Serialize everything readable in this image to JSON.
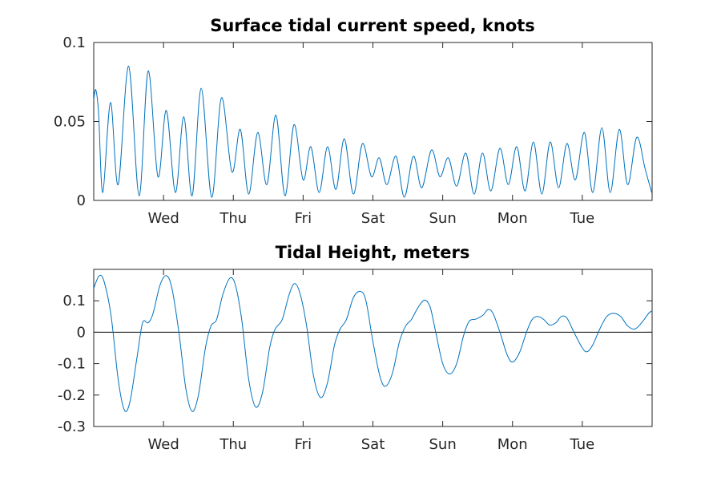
{
  "chart_data": [
    {
      "type": "line",
      "title": "Surface tidal current speed, knots",
      "xlabel": "",
      "ylabel": "",
      "x_unit": "days",
      "xlim": [
        0,
        8
      ],
      "ylim": [
        0,
        0.1
      ],
      "y_ticks": [
        0,
        0.05,
        0.1
      ],
      "y_tick_labels": [
        "0",
        "0.05",
        "0.1"
      ],
      "x_ticks": [
        1,
        2,
        3,
        4,
        5,
        6,
        7
      ],
      "x_tick_labels": [
        "Wed",
        "Thu",
        "Fri",
        "Sat",
        "Sun",
        "Mon",
        "Tue"
      ],
      "grid": false,
      "color": "#0072bd",
      "zero_line": false,
      "series": [
        {
          "points": [
            [
              0.0,
              0.064
            ],
            [
              0.03,
              0.07
            ],
            [
              0.07,
              0.055
            ],
            [
              0.13,
              0.005
            ],
            [
              0.24,
              0.062
            ],
            [
              0.35,
              0.01
            ],
            [
              0.5,
              0.085
            ],
            [
              0.65,
              0.003
            ],
            [
              0.78,
              0.082
            ],
            [
              0.92,
              0.015
            ],
            [
              1.04,
              0.057
            ],
            [
              1.17,
              0.005
            ],
            [
              1.29,
              0.053
            ],
            [
              1.41,
              0.003
            ],
            [
              1.54,
              0.071
            ],
            [
              1.69,
              0.002
            ],
            [
              1.83,
              0.065
            ],
            [
              1.98,
              0.018
            ],
            [
              2.1,
              0.045
            ],
            [
              2.22,
              0.004
            ],
            [
              2.35,
              0.043
            ],
            [
              2.48,
              0.01
            ],
            [
              2.61,
              0.054
            ],
            [
              2.74,
              0.003
            ],
            [
              2.87,
              0.048
            ],
            [
              3.0,
              0.013
            ],
            [
              3.11,
              0.034
            ],
            [
              3.23,
              0.005
            ],
            [
              3.35,
              0.034
            ],
            [
              3.47,
              0.007
            ],
            [
              3.59,
              0.039
            ],
            [
              3.72,
              0.004
            ],
            [
              3.85,
              0.036
            ],
            [
              3.98,
              0.015
            ],
            [
              4.09,
              0.027
            ],
            [
              4.2,
              0.01
            ],
            [
              4.33,
              0.028
            ],
            [
              4.45,
              0.002
            ],
            [
              4.58,
              0.028
            ],
            [
              4.7,
              0.008
            ],
            [
              4.84,
              0.032
            ],
            [
              4.96,
              0.015
            ],
            [
              5.08,
              0.027
            ],
            [
              5.2,
              0.009
            ],
            [
              5.33,
              0.03
            ],
            [
              5.45,
              0.004
            ],
            [
              5.57,
              0.03
            ],
            [
              5.69,
              0.006
            ],
            [
              5.82,
              0.033
            ],
            [
              5.94,
              0.01
            ],
            [
              6.06,
              0.034
            ],
            [
              6.18,
              0.006
            ],
            [
              6.3,
              0.037
            ],
            [
              6.42,
              0.004
            ],
            [
              6.54,
              0.037
            ],
            [
              6.66,
              0.008
            ],
            [
              6.78,
              0.036
            ],
            [
              6.9,
              0.013
            ],
            [
              7.03,
              0.043
            ],
            [
              7.15,
              0.005
            ],
            [
              7.28,
              0.046
            ],
            [
              7.4,
              0.005
            ],
            [
              7.53,
              0.045
            ],
            [
              7.65,
              0.01
            ],
            [
              7.78,
              0.04
            ],
            [
              7.9,
              0.02
            ],
            [
              8.0,
              0.004
            ]
          ]
        }
      ]
    },
    {
      "type": "line",
      "title": "Tidal Height, meters",
      "xlabel": "",
      "ylabel": "",
      "x_unit": "days",
      "xlim": [
        0,
        8
      ],
      "ylim": [
        -0.3,
        0.2
      ],
      "y_ticks": [
        -0.3,
        -0.2,
        -0.1,
        0,
        0.1
      ],
      "y_tick_labels": [
        "-0.3",
        "-0.2",
        "-0.1",
        "0",
        "0.1"
      ],
      "x_ticks": [
        1,
        2,
        3,
        4,
        5,
        6,
        7
      ],
      "x_tick_labels": [
        "Wed",
        "Thu",
        "Fri",
        "Sat",
        "Sun",
        "Mon",
        "Tue"
      ],
      "grid": false,
      "color": "#0072bd",
      "zero_line": true,
      "series": [
        {
          "points": [
            [
              0.0,
              0.14
            ],
            [
              0.08,
              0.18
            ],
            [
              0.15,
              0.16
            ],
            [
              0.25,
              0.05
            ],
            [
              0.35,
              -0.15
            ],
            [
              0.44,
              -0.248
            ],
            [
              0.52,
              -0.22
            ],
            [
              0.62,
              -0.08
            ],
            [
              0.7,
              0.03
            ],
            [
              0.78,
              0.03
            ],
            [
              0.85,
              0.06
            ],
            [
              0.95,
              0.15
            ],
            [
              1.04,
              0.18
            ],
            [
              1.12,
              0.14
            ],
            [
              1.22,
              0.0
            ],
            [
              1.32,
              -0.18
            ],
            [
              1.41,
              -0.252
            ],
            [
              1.5,
              -0.2
            ],
            [
              1.6,
              -0.05
            ],
            [
              1.68,
              0.02
            ],
            [
              1.76,
              0.04
            ],
            [
              1.85,
              0.12
            ],
            [
              1.95,
              0.172
            ],
            [
              2.03,
              0.15
            ],
            [
              2.12,
              0.04
            ],
            [
              2.22,
              -0.15
            ],
            [
              2.32,
              -0.238
            ],
            [
              2.42,
              -0.19
            ],
            [
              2.52,
              -0.05
            ],
            [
              2.6,
              0.01
            ],
            [
              2.7,
              0.04
            ],
            [
              2.8,
              0.12
            ],
            [
              2.88,
              0.155
            ],
            [
              2.96,
              0.12
            ],
            [
              3.05,
              0.02
            ],
            [
              3.15,
              -0.14
            ],
            [
              3.25,
              -0.208
            ],
            [
              3.35,
              -0.16
            ],
            [
              3.45,
              -0.04
            ],
            [
              3.53,
              0.01
            ],
            [
              3.62,
              0.04
            ],
            [
              3.72,
              0.11
            ],
            [
              3.82,
              0.13
            ],
            [
              3.9,
              0.1
            ],
            [
              4.0,
              -0.03
            ],
            [
              4.1,
              -0.14
            ],
            [
              4.18,
              -0.172
            ],
            [
              4.28,
              -0.13
            ],
            [
              4.38,
              -0.03
            ],
            [
              4.47,
              0.02
            ],
            [
              4.55,
              0.04
            ],
            [
              4.65,
              0.08
            ],
            [
              4.74,
              0.102
            ],
            [
              4.82,
              0.08
            ],
            [
              4.9,
              0.0
            ],
            [
              5.0,
              -0.1
            ],
            [
              5.1,
              -0.133
            ],
            [
              5.2,
              -0.1
            ],
            [
              5.3,
              -0.01
            ],
            [
              5.38,
              0.035
            ],
            [
              5.48,
              0.042
            ],
            [
              5.58,
              0.055
            ],
            [
              5.65,
              0.072
            ],
            [
              5.72,
              0.06
            ],
            [
              5.82,
              0.0
            ],
            [
              5.92,
              -0.07
            ],
            [
              6.0,
              -0.095
            ],
            [
              6.1,
              -0.065
            ],
            [
              6.2,
              0.0
            ],
            [
              6.28,
              0.04
            ],
            [
              6.36,
              0.05
            ],
            [
              6.45,
              0.04
            ],
            [
              6.53,
              0.023
            ],
            [
              6.62,
              0.03
            ],
            [
              6.7,
              0.05
            ],
            [
              6.78,
              0.045
            ],
            [
              6.88,
              0.0
            ],
            [
              7.0,
              -0.05
            ],
            [
              7.07,
              -0.062
            ],
            [
              7.15,
              -0.04
            ],
            [
              7.25,
              0.01
            ],
            [
              7.35,
              0.05
            ],
            [
              7.45,
              0.06
            ],
            [
              7.55,
              0.05
            ],
            [
              7.65,
              0.02
            ],
            [
              7.75,
              0.01
            ],
            [
              7.85,
              0.03
            ],
            [
              7.95,
              0.06
            ],
            [
              8.0,
              0.068
            ]
          ]
        }
      ]
    }
  ]
}
